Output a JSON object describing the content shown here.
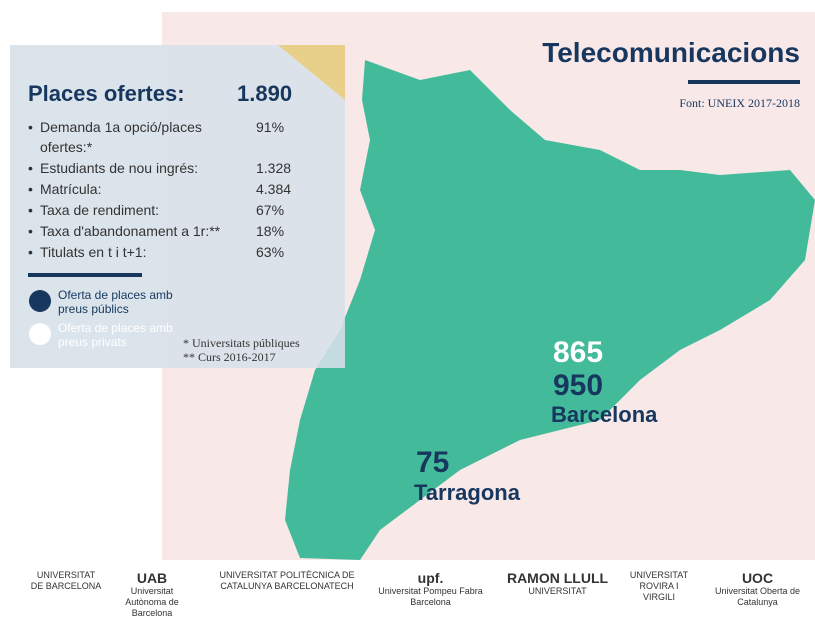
{
  "header": {
    "title": "Telecomunicacions",
    "source": "Font: UNEIX 2017-2018"
  },
  "panel": {
    "heading": "Places ofertes:",
    "total": "1.890",
    "stats": [
      {
        "label": "Demanda 1a opció/places ofertes:*",
        "value": "91%"
      },
      {
        "label": "Estudiants de nou ingrés:",
        "value": "1.328"
      },
      {
        "label": "Matrícula:",
        "value": "4.384"
      },
      {
        "label": "Taxa de rendiment:",
        "value": "67%"
      },
      {
        "label": "Taxa d'abandonament a 1r:**",
        "value": "18%"
      },
      {
        "label": "Titulats en t i t+1:",
        "value": "63%"
      }
    ],
    "legend": [
      "Oferta de places amb preus públics",
      "Oferta de places amb preus privats"
    ],
    "notes": [
      "* Universitats públiques",
      "** Curs 2016-2017"
    ]
  },
  "map": {
    "barcelona": {
      "public": "865",
      "private": "950",
      "name": "Barcelona"
    },
    "tarragona": {
      "public": "75",
      "name": "Tarragona"
    }
  },
  "logos": [
    {
      "name": "UNIVERSITAT DE BARCELONA"
    },
    {
      "mark": "UAB",
      "name": "Universitat Autònoma de Barcelona"
    },
    {
      "name": "UNIVERSITAT POLITÈCNICA DE CATALUNYA BARCELONATECH"
    },
    {
      "mark": "upf.",
      "name": "Universitat Pompeu Fabra Barcelona"
    },
    {
      "mark": "RAMON LLULL",
      "name": "UNIVERSITAT"
    },
    {
      "name": "UNIVERSITAT ROVIRA I VIRGILI"
    },
    {
      "mark": "UOC",
      "name": "Universitat Oberta de Catalunya"
    }
  ]
}
